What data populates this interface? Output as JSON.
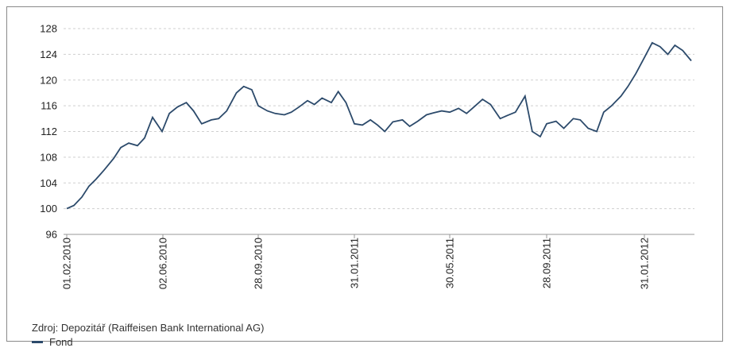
{
  "chart_data": {
    "type": "line",
    "title": "",
    "xlabel": "",
    "ylabel": "",
    "ylim": [
      96,
      128
    ],
    "y_ticks": [
      "96",
      "100",
      "104",
      "108",
      "112",
      "116",
      "120",
      "124",
      "128"
    ],
    "x_tick_labels": [
      "01.02.2010",
      "02.06.2010",
      "28.09.2010",
      "31.01.2011",
      "30.05.2011",
      "28.09.2011",
      "31.01.2012"
    ],
    "grid": "horizontal dashed",
    "legend_position": "bottom-left",
    "series": [
      {
        "name": "Fond",
        "color": "#2c4a6b",
        "x": [
          "2010-02-01",
          "2010-02-10",
          "2010-02-20",
          "2010-03-01",
          "2010-03-10",
          "2010-03-20",
          "2010-04-01",
          "2010-04-10",
          "2010-04-20",
          "2010-05-01",
          "2010-05-10",
          "2010-05-20",
          "2010-06-01",
          "2010-06-10",
          "2010-06-20",
          "2010-07-01",
          "2010-07-10",
          "2010-07-20",
          "2010-08-01",
          "2010-08-10",
          "2010-08-20",
          "2010-09-01",
          "2010-09-10",
          "2010-09-20",
          "2010-09-28",
          "2010-10-10",
          "2010-10-20",
          "2010-11-01",
          "2010-11-10",
          "2010-11-20",
          "2010-12-01",
          "2010-12-10",
          "2010-12-20",
          "2011-01-01",
          "2011-01-10",
          "2011-01-20",
          "2011-01-31",
          "2011-02-10",
          "2011-02-20",
          "2011-03-01",
          "2011-03-10",
          "2011-03-20",
          "2011-04-01",
          "2011-04-10",
          "2011-04-20",
          "2011-05-01",
          "2011-05-10",
          "2011-05-20",
          "2011-05-30",
          "2011-06-10",
          "2011-06-20",
          "2011-07-01",
          "2011-07-10",
          "2011-07-20",
          "2011-08-01",
          "2011-08-10",
          "2011-08-20",
          "2011-09-01",
          "2011-09-10",
          "2011-09-20",
          "2011-09-28",
          "2011-10-10",
          "2011-10-20",
          "2011-11-01",
          "2011-11-10",
          "2011-11-20",
          "2011-12-01",
          "2011-12-10",
          "2011-12-20",
          "2012-01-01",
          "2012-01-10",
          "2012-01-20",
          "2012-01-31",
          "2012-02-10",
          "2012-02-20",
          "2012-03-01",
          "2012-03-10",
          "2012-03-20",
          "2012-03-31"
        ],
        "values": [
          100.0,
          100.5,
          101.8,
          103.5,
          104.6,
          106.0,
          107.8,
          109.5,
          110.2,
          109.8,
          111.0,
          114.2,
          112.0,
          114.8,
          115.8,
          116.5,
          115.2,
          113.2,
          113.8,
          114.0,
          115.2,
          118.0,
          119.0,
          118.5,
          116.0,
          115.2,
          114.8,
          114.6,
          115.0,
          115.8,
          116.8,
          116.2,
          117.2,
          116.5,
          118.2,
          116.5,
          113.2,
          113.0,
          113.8,
          113.0,
          112.0,
          113.5,
          113.8,
          112.8,
          113.6,
          114.6,
          114.9,
          115.2,
          115.0,
          115.6,
          114.8,
          116.0,
          117.0,
          116.2,
          114.0,
          114.5,
          115.0,
          117.5,
          112.0,
          111.2,
          113.2,
          113.6,
          112.5,
          114.0,
          113.8,
          112.5,
          112.0,
          115.0,
          116.0,
          117.5,
          119.0,
          121.0,
          123.5,
          125.8,
          125.2,
          124.0,
          125.4,
          124.6,
          123.0
        ]
      }
    ]
  },
  "source": "Zdroj: Depozitář (Raiffeisen Bank International AG)",
  "legend": {
    "label": "Fond",
    "color": "#2c4a6b"
  }
}
